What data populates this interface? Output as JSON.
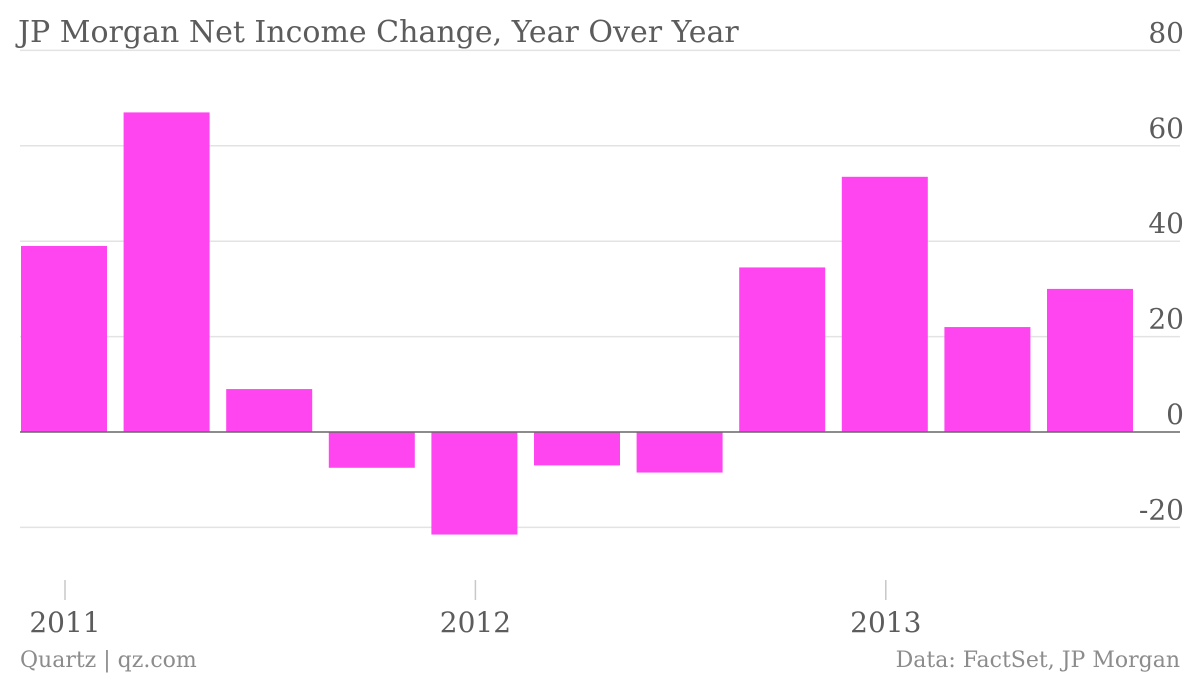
{
  "chart_data": {
    "type": "bar",
    "title": "JP Morgan Net Income Change, Year Over Year",
    "values": [
      39,
      67,
      9,
      -7.5,
      -21.5,
      -7,
      -8.5,
      34.5,
      53.5,
      22,
      30
    ],
    "x_tick_labels": [
      "2011",
      "2012",
      "2013"
    ],
    "x_tick_positions": [
      0.5,
      4.5,
      8.5
    ],
    "y_ticks": [
      80,
      60,
      40,
      20,
      0,
      -20
    ],
    "y_tick_labels": [
      "80",
      "60",
      "40",
      "20",
      "0",
      "-20"
    ],
    "ylim": [
      -28,
      80
    ],
    "grid": true,
    "y_axis_side": "right",
    "bar_color": "#ff45f0"
  },
  "footer": {
    "source_left": "Quartz | qz.com",
    "source_right": "Data: FactSet, JP Morgan"
  }
}
